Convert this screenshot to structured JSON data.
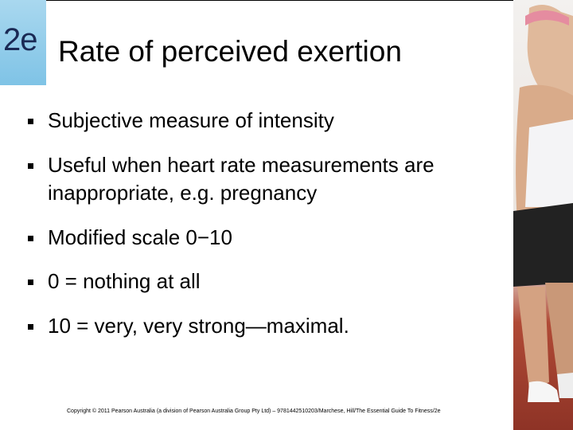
{
  "badge": "2e",
  "title": "Rate of perceived exertion",
  "bullets": [
    "Subjective measure of intensity",
    "Useful when heart rate measurements are inappropriate, e.g. pregnancy",
    "Modified scale 0−10",
    "0 = nothing at all",
    "10 = very, very strong—maximal."
  ],
  "footer": "Copyright © 2011 Pearson Australia (a division of Pearson Australia Group Pty Ltd) – 9781442510203/Marchese, Hill/The Essential Guide To Fitness/2e"
}
